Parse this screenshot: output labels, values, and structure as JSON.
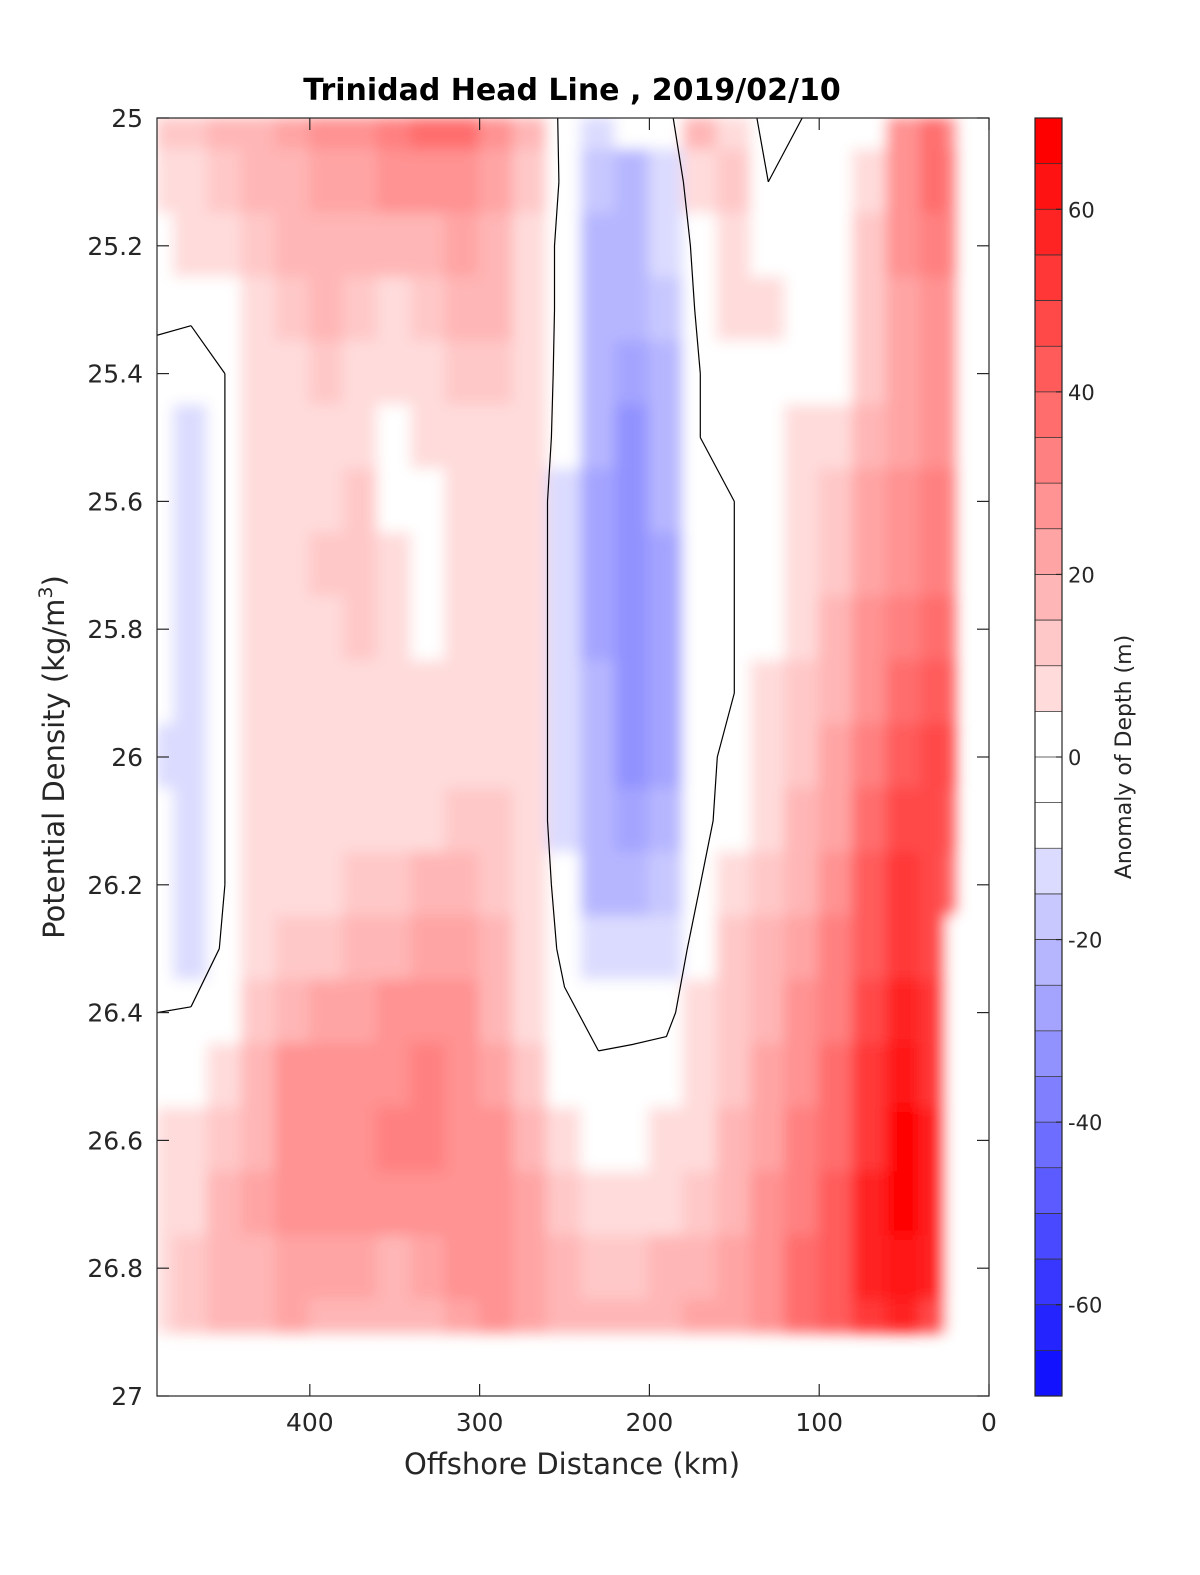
{
  "chart_data": {
    "type": "heatmap",
    "title": "Trinidad Head Line , 2019/02/10",
    "xlabel": "Offshore Distance (km)",
    "ylabel_parts": [
      "Potential Density (kg/m",
      "3",
      ")"
    ],
    "xlim": [
      490,
      0
    ],
    "ylim": [
      25,
      27
    ],
    "y_reversed": true,
    "x_ticks": [
      {
        "value": 400,
        "label": "400"
      },
      {
        "value": 300,
        "label": "300"
      },
      {
        "value": 200,
        "label": "200"
      },
      {
        "value": 100,
        "label": "100"
      },
      {
        "value": 0,
        "label": "0"
      }
    ],
    "y_ticks": [
      {
        "value": 25,
        "label": "25"
      },
      {
        "value": 25.2,
        "label": "25.2"
      },
      {
        "value": 25.4,
        "label": "25.4"
      },
      {
        "value": 25.6,
        "label": "25.6"
      },
      {
        "value": 25.8,
        "label": "25.8"
      },
      {
        "value": 26,
        "label": "26"
      },
      {
        "value": 26.2,
        "label": "26.2"
      },
      {
        "value": 26.4,
        "label": "26.4"
      },
      {
        "value": 26.6,
        "label": "26.6"
      },
      {
        "value": 26.8,
        "label": "26.8"
      },
      {
        "value": 27,
        "label": "27"
      }
    ],
    "colorbar": {
      "label": "Anomaly of Depth (m)",
      "range": [
        -70,
        70
      ],
      "step": 5,
      "ticks": [
        {
          "value": 60,
          "label": "60"
        },
        {
          "value": 40,
          "label": "40"
        },
        {
          "value": 20,
          "label": "20"
        },
        {
          "value": 0,
          "label": "0"
        },
        {
          "value": -20,
          "label": "-20"
        },
        {
          "value": -40,
          "label": "-40"
        },
        {
          "value": -60,
          "label": "-60"
        }
      ],
      "colors": {
        "negative": "#0000ff",
        "zero": "#ffffff",
        "positive": "#ff0000"
      }
    },
    "x": [
      490,
      470,
      450,
      430,
      410,
      390,
      370,
      350,
      330,
      310,
      290,
      270,
      250,
      230,
      210,
      190,
      170,
      150,
      130,
      110,
      90,
      70,
      50,
      30,
      20
    ],
    "y": [
      25.0,
      25.1,
      25.2,
      25.3,
      25.4,
      25.5,
      25.6,
      25.7,
      25.8,
      25.9,
      26.0,
      26.1,
      26.2,
      26.3,
      26.4,
      26.5,
      26.6,
      26.7,
      26.8,
      26.9
    ],
    "z": [
      [
        15,
        15,
        18,
        22,
        25,
        28,
        30,
        35,
        40,
        38,
        30,
        20,
        -5,
        -10,
        0,
        -5,
        20,
        10,
        -5,
        0,
        0,
        0,
        30,
        40,
        30
      ],
      [
        12,
        12,
        15,
        18,
        22,
        25,
        25,
        28,
        30,
        28,
        25,
        15,
        -3,
        -15,
        -18,
        -10,
        10,
        15,
        0,
        0,
        0,
        10,
        30,
        40,
        35
      ],
      [
        5,
        8,
        12,
        15,
        18,
        22,
        20,
        20,
        22,
        25,
        22,
        12,
        -5,
        -18,
        -20,
        -12,
        5,
        12,
        5,
        5,
        0,
        15,
        30,
        35,
        35
      ],
      [
        2,
        1,
        2,
        12,
        15,
        18,
        15,
        12,
        15,
        20,
        20,
        12,
        -5,
        -20,
        -22,
        -15,
        3,
        10,
        8,
        5,
        5,
        15,
        25,
        30,
        32
      ],
      [
        -3,
        -3,
        0,
        10,
        12,
        15,
        12,
        10,
        12,
        15,
        15,
        10,
        -5,
        -20,
        -25,
        -18,
        0,
        5,
        5,
        5,
        5,
        15,
        25,
        30,
        30
      ],
      [
        -5,
        -8,
        0,
        10,
        12,
        12,
        10,
        5,
        8,
        12,
        12,
        8,
        -5,
        -22,
        -28,
        -20,
        0,
        0,
        5,
        10,
        10,
        20,
        25,
        30,
        30
      ],
      [
        -5,
        -10,
        0,
        10,
        10,
        12,
        15,
        3,
        5,
        10,
        12,
        8,
        -8,
        -25,
        -30,
        -22,
        -3,
        0,
        0,
        10,
        15,
        25,
        30,
        35,
        35
      ],
      [
        -5,
        -10,
        0,
        10,
        10,
        15,
        15,
        8,
        3,
        10,
        12,
        8,
        -8,
        -25,
        -30,
        -25,
        -5,
        0,
        0,
        10,
        15,
        25,
        30,
        35,
        35
      ],
      [
        -5,
        -10,
        0,
        10,
        10,
        12,
        15,
        10,
        5,
        10,
        12,
        8,
        -8,
        -25,
        -30,
        -25,
        -5,
        0,
        5,
        12,
        20,
        30,
        35,
        40,
        40
      ],
      [
        -5,
        -10,
        0,
        10,
        10,
        12,
        12,
        10,
        8,
        10,
        12,
        8,
        -8,
        -22,
        -30,
        -25,
        -5,
        0,
        10,
        15,
        20,
        30,
        40,
        45,
        45
      ],
      [
        -8,
        -10,
        0,
        10,
        10,
        12,
        12,
        12,
        10,
        10,
        12,
        8,
        -8,
        -22,
        -28,
        -25,
        -5,
        5,
        10,
        15,
        25,
        35,
        45,
        50,
        50
      ],
      [
        -5,
        -10,
        0,
        10,
        10,
        12,
        12,
        10,
        8,
        15,
        15,
        8,
        -8,
        -20,
        -25,
        -22,
        -3,
        5,
        10,
        20,
        25,
        40,
        50,
        50,
        45
      ],
      [
        -5,
        -10,
        0,
        10,
        10,
        12,
        15,
        15,
        20,
        20,
        15,
        8,
        -5,
        -18,
        -20,
        -15,
        0,
        10,
        15,
        20,
        30,
        45,
        55,
        50,
        40
      ],
      [
        -5,
        -10,
        2,
        12,
        15,
        15,
        18,
        20,
        25,
        25,
        20,
        10,
        -3,
        -10,
        -12,
        -8,
        5,
        15,
        20,
        25,
        35,
        45,
        55,
        50,
        0
      ],
      [
        0,
        1,
        5,
        15,
        20,
        25,
        25,
        28,
        30,
        28,
        22,
        12,
        2,
        -3,
        -3,
        -3,
        8,
        15,
        20,
        30,
        35,
        50,
        60,
        55,
        0
      ],
      [
        5,
        5,
        10,
        20,
        28,
        30,
        30,
        32,
        35,
        30,
        25,
        15,
        5,
        2,
        3,
        5,
        10,
        15,
        25,
        30,
        40,
        55,
        65,
        55,
        0
      ],
      [
        8,
        10,
        15,
        22,
        30,
        30,
        30,
        35,
        35,
        30,
        28,
        20,
        10,
        5,
        5,
        8,
        12,
        20,
        25,
        35,
        40,
        55,
        70,
        60,
        0
      ],
      [
        10,
        12,
        18,
        25,
        28,
        28,
        30,
        30,
        30,
        28,
        30,
        25,
        15,
        10,
        10,
        12,
        15,
        20,
        28,
        35,
        45,
        60,
        70,
        60,
        0
      ],
      [
        12,
        15,
        20,
        22,
        25,
        25,
        25,
        22,
        25,
        28,
        28,
        25,
        18,
        15,
        15,
        18,
        20,
        25,
        30,
        38,
        45,
        60,
        65,
        60,
        0
      ],
      [
        12,
        15,
        18,
        20,
        25,
        22,
        22,
        20,
        22,
        25,
        28,
        25,
        20,
        18,
        18,
        20,
        25,
        25,
        30,
        38,
        45,
        55,
        60,
        50,
        0
      ]
    ]
  }
}
